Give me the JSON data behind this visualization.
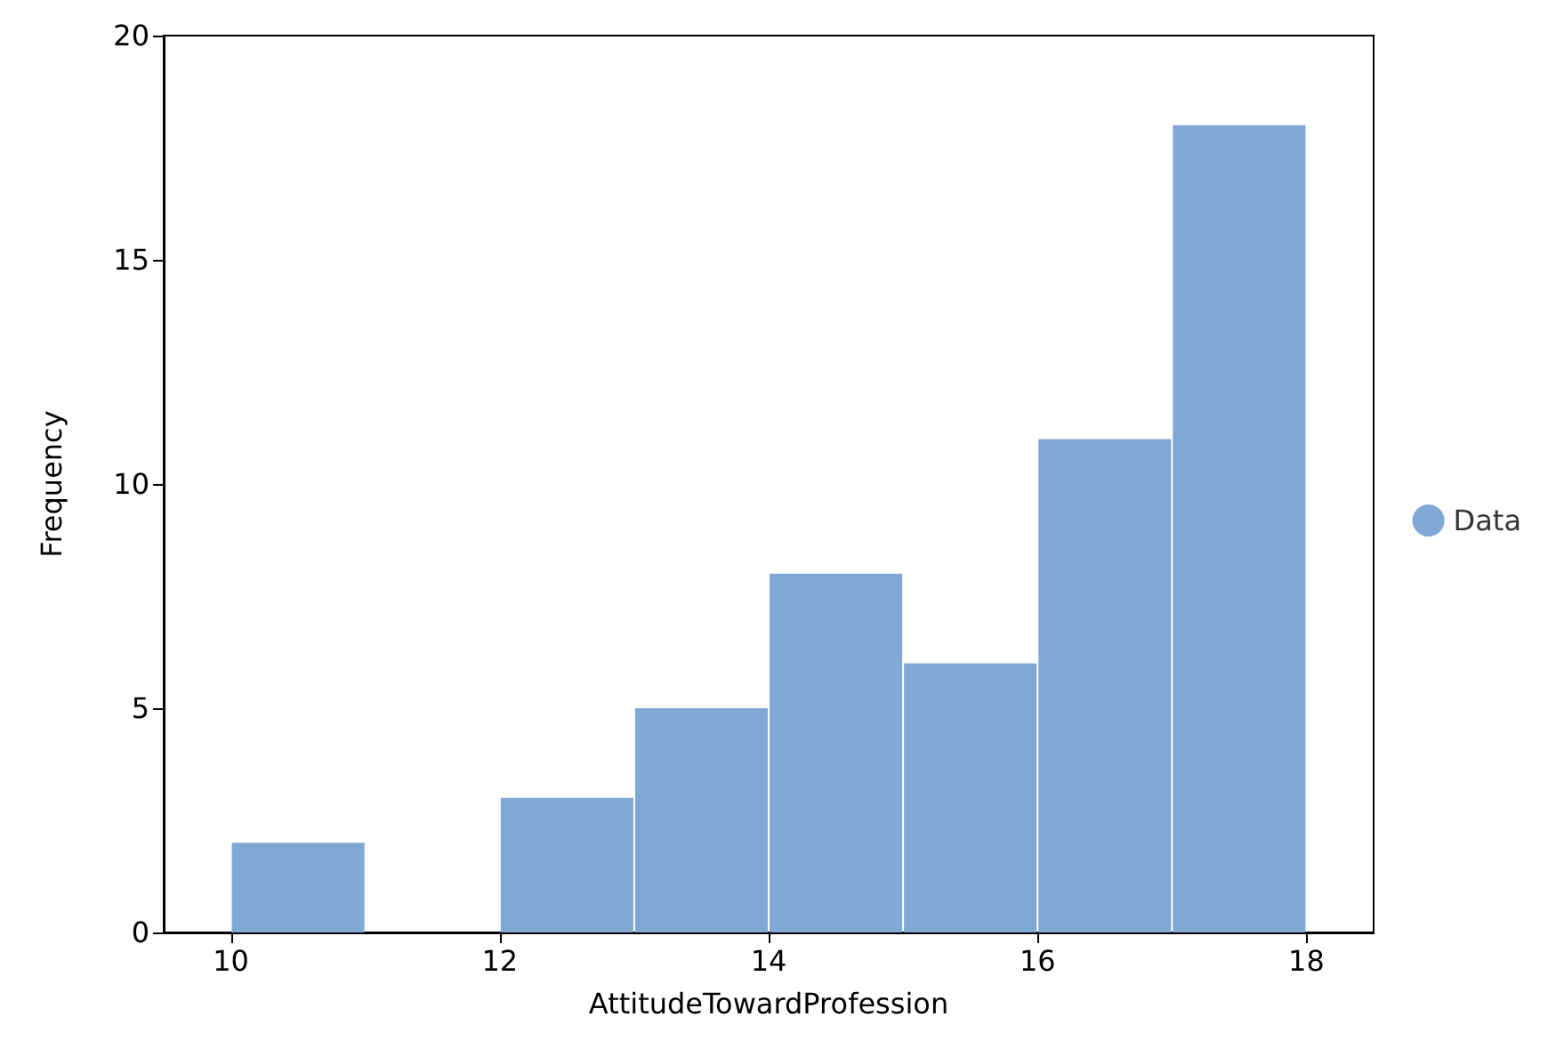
{
  "chart_data": {
    "type": "histogram",
    "xlabel": "AttitudeTowardProfession",
    "ylabel": "Frequency",
    "bins": [
      10,
      11,
      12,
      13,
      14,
      15,
      16,
      17,
      18
    ],
    "series": [
      {
        "name": "Data",
        "color": "#7fa9d4",
        "values": [
          2,
          0,
          3,
          5,
          8,
          6,
          11,
          18
        ]
      }
    ],
    "xlim": [
      9.5,
      18.5
    ],
    "xticks": [
      10,
      12,
      14,
      16,
      18
    ],
    "ylim": [
      0,
      20
    ],
    "yticks": [
      0,
      5,
      10,
      15,
      20
    ],
    "grid": false,
    "legend": "right",
    "marker": "circle"
  }
}
